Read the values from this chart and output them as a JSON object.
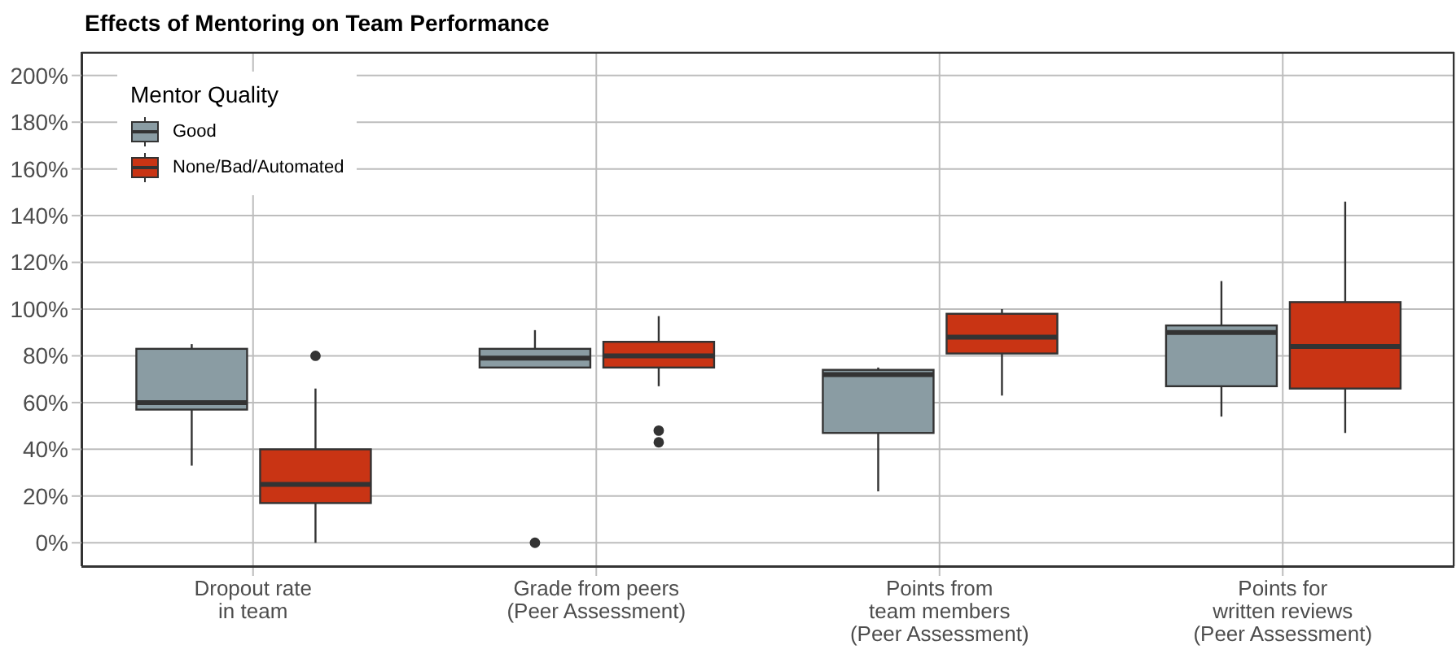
{
  "chart_data": {
    "type": "box",
    "title": "Effects of Mentoring on Team Performance",
    "legend_title": "Mentor Quality",
    "categories": [
      "Dropout rate\nin team",
      "Grade from peers\n(Peer Assessment)",
      "Points from\nteam members\n(Peer Assessment)",
      "Points for\nwritten reviews\n(Peer Assessment)"
    ],
    "series": [
      {
        "name": "Good",
        "color": "#8a9ca3",
        "boxes": [
          {
            "low": 33,
            "q1": 57,
            "median": 60,
            "q3": 83,
            "high": 85
          },
          {
            "low": 75,
            "q1": 75,
            "median": 79,
            "q3": 83,
            "high": 91,
            "outliers": [
              0
            ]
          },
          {
            "low": 22,
            "q1": 47,
            "median": 72,
            "q3": 74,
            "high": 75
          },
          {
            "low": 54,
            "q1": 67,
            "median": 90,
            "q3": 93,
            "high": 112
          }
        ]
      },
      {
        "name": "None/Bad/Automated",
        "color": "#c93414",
        "boxes": [
          {
            "low": 0,
            "q1": 17,
            "median": 25,
            "q3": 40,
            "high": 66,
            "outliers": [
              80
            ]
          },
          {
            "low": 67,
            "q1": 75,
            "median": 80,
            "q3": 86,
            "high": 97,
            "outliers": [
              48,
              43
            ]
          },
          {
            "low": 63,
            "q1": 81,
            "median": 88,
            "q3": 98,
            "high": 100
          },
          {
            "low": 47,
            "q1": 66,
            "median": 84,
            "q3": 103,
            "high": 146
          }
        ]
      }
    ],
    "ylim": [
      -10,
      210
    ],
    "yticks": [
      {
        "value": 0,
        "label": "0%"
      },
      {
        "value": 20,
        "label": "20%"
      },
      {
        "value": 40,
        "label": "40%"
      },
      {
        "value": 60,
        "label": "60%"
      },
      {
        "value": 80,
        "label": "80%"
      },
      {
        "value": 100,
        "label": "100%"
      },
      {
        "value": 120,
        "label": "120%"
      },
      {
        "value": 140,
        "label": "140%"
      },
      {
        "value": 160,
        "label": "160%"
      },
      {
        "value": 180,
        "label": "180%"
      },
      {
        "value": 200,
        "label": "200%"
      }
    ],
    "grid": true,
    "legend": "top left"
  }
}
